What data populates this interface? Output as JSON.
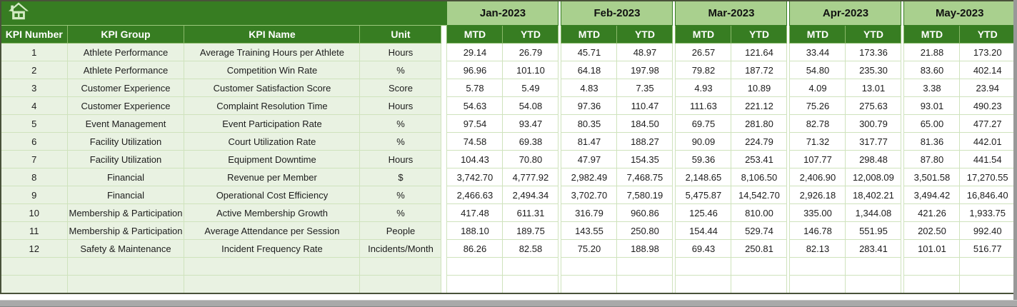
{
  "table": {
    "left_headers": [
      "KPI Number",
      "KPI Group",
      "KPI Name",
      "Unit"
    ],
    "months": [
      "Jan-2023",
      "Feb-2023",
      "Mar-2023",
      "Apr-2023",
      "May-2023"
    ],
    "sub_headers": [
      "MTD",
      "YTD"
    ],
    "rows": [
      {
        "num": "1",
        "group": "Athlete Performance",
        "name": "Average Training Hours per Athlete",
        "unit": "Hours",
        "values": [
          "29.14",
          "26.79",
          "45.71",
          "48.97",
          "26.57",
          "121.64",
          "33.44",
          "173.36",
          "21.88",
          "173.20"
        ]
      },
      {
        "num": "2",
        "group": "Athlete Performance",
        "name": "Competition Win Rate",
        "unit": "%",
        "values": [
          "96.96",
          "101.10",
          "64.18",
          "197.98",
          "79.82",
          "187.72",
          "54.80",
          "235.30",
          "83.60",
          "402.14"
        ]
      },
      {
        "num": "3",
        "group": "Customer Experience",
        "name": "Customer Satisfaction Score",
        "unit": "Score",
        "values": [
          "5.78",
          "5.49",
          "4.83",
          "7.35",
          "4.93",
          "10.89",
          "4.09",
          "13.01",
          "3.38",
          "23.94"
        ]
      },
      {
        "num": "4",
        "group": "Customer Experience",
        "name": "Complaint Resolution Time",
        "unit": "Hours",
        "values": [
          "54.63",
          "54.08",
          "97.36",
          "110.47",
          "111.63",
          "221.12",
          "75.26",
          "275.63",
          "93.01",
          "490.23"
        ]
      },
      {
        "num": "5",
        "group": "Event Management",
        "name": "Event Participation Rate",
        "unit": "%",
        "values": [
          "97.54",
          "93.47",
          "80.35",
          "184.50",
          "69.75",
          "281.80",
          "82.78",
          "300.79",
          "65.00",
          "477.27"
        ]
      },
      {
        "num": "6",
        "group": "Facility Utilization",
        "name": "Court Utilization Rate",
        "unit": "%",
        "values": [
          "74.58",
          "69.38",
          "81.47",
          "188.27",
          "90.09",
          "224.79",
          "71.32",
          "317.77",
          "81.36",
          "442.01"
        ]
      },
      {
        "num": "7",
        "group": "Facility Utilization",
        "name": "Equipment Downtime",
        "unit": "Hours",
        "values": [
          "104.43",
          "70.80",
          "47.97",
          "154.35",
          "59.36",
          "253.41",
          "107.77",
          "298.48",
          "87.80",
          "441.54"
        ]
      },
      {
        "num": "8",
        "group": "Financial",
        "name": "Revenue per Member",
        "unit": "$",
        "values": [
          "3,742.70",
          "4,777.92",
          "2,982.49",
          "7,468.75",
          "2,148.65",
          "8,106.50",
          "2,406.90",
          "12,008.09",
          "3,501.58",
          "17,270.55"
        ]
      },
      {
        "num": "9",
        "group": "Financial",
        "name": "Operational Cost Efficiency",
        "unit": "%",
        "values": [
          "2,466.63",
          "2,494.34",
          "3,702.70",
          "7,580.19",
          "5,475.87",
          "14,542.70",
          "2,926.18",
          "18,402.21",
          "3,494.42",
          "16,846.40"
        ]
      },
      {
        "num": "10",
        "group": "Membership & Participation",
        "name": "Active Membership Growth",
        "unit": "%",
        "values": [
          "417.48",
          "611.31",
          "316.79",
          "960.86",
          "125.46",
          "810.00",
          "335.00",
          "1,344.08",
          "421.26",
          "1,933.75"
        ]
      },
      {
        "num": "11",
        "group": "Membership & Participation",
        "name": "Average Attendance per Session",
        "unit": "People",
        "values": [
          "188.10",
          "189.75",
          "143.55",
          "250.80",
          "154.44",
          "529.74",
          "146.78",
          "551.95",
          "202.50",
          "992.40"
        ]
      },
      {
        "num": "12",
        "group": "Safety & Maintenance",
        "name": "Incident Frequency Rate",
        "unit": "Incidents/Month",
        "values": [
          "86.26",
          "82.58",
          "75.20",
          "188.98",
          "69.43",
          "250.81",
          "82.13",
          "283.41",
          "101.01",
          "516.77"
        ]
      }
    ],
    "empty_row_count": 2
  },
  "icons": {
    "home": "home-icon"
  },
  "colors": {
    "header_green": "#377D22",
    "month_band_green": "#A9D08E",
    "row_tint_green": "#E9F2E2",
    "gridline_green": "#CFE3BD",
    "icon_pale_green": "#D3EBC4"
  }
}
